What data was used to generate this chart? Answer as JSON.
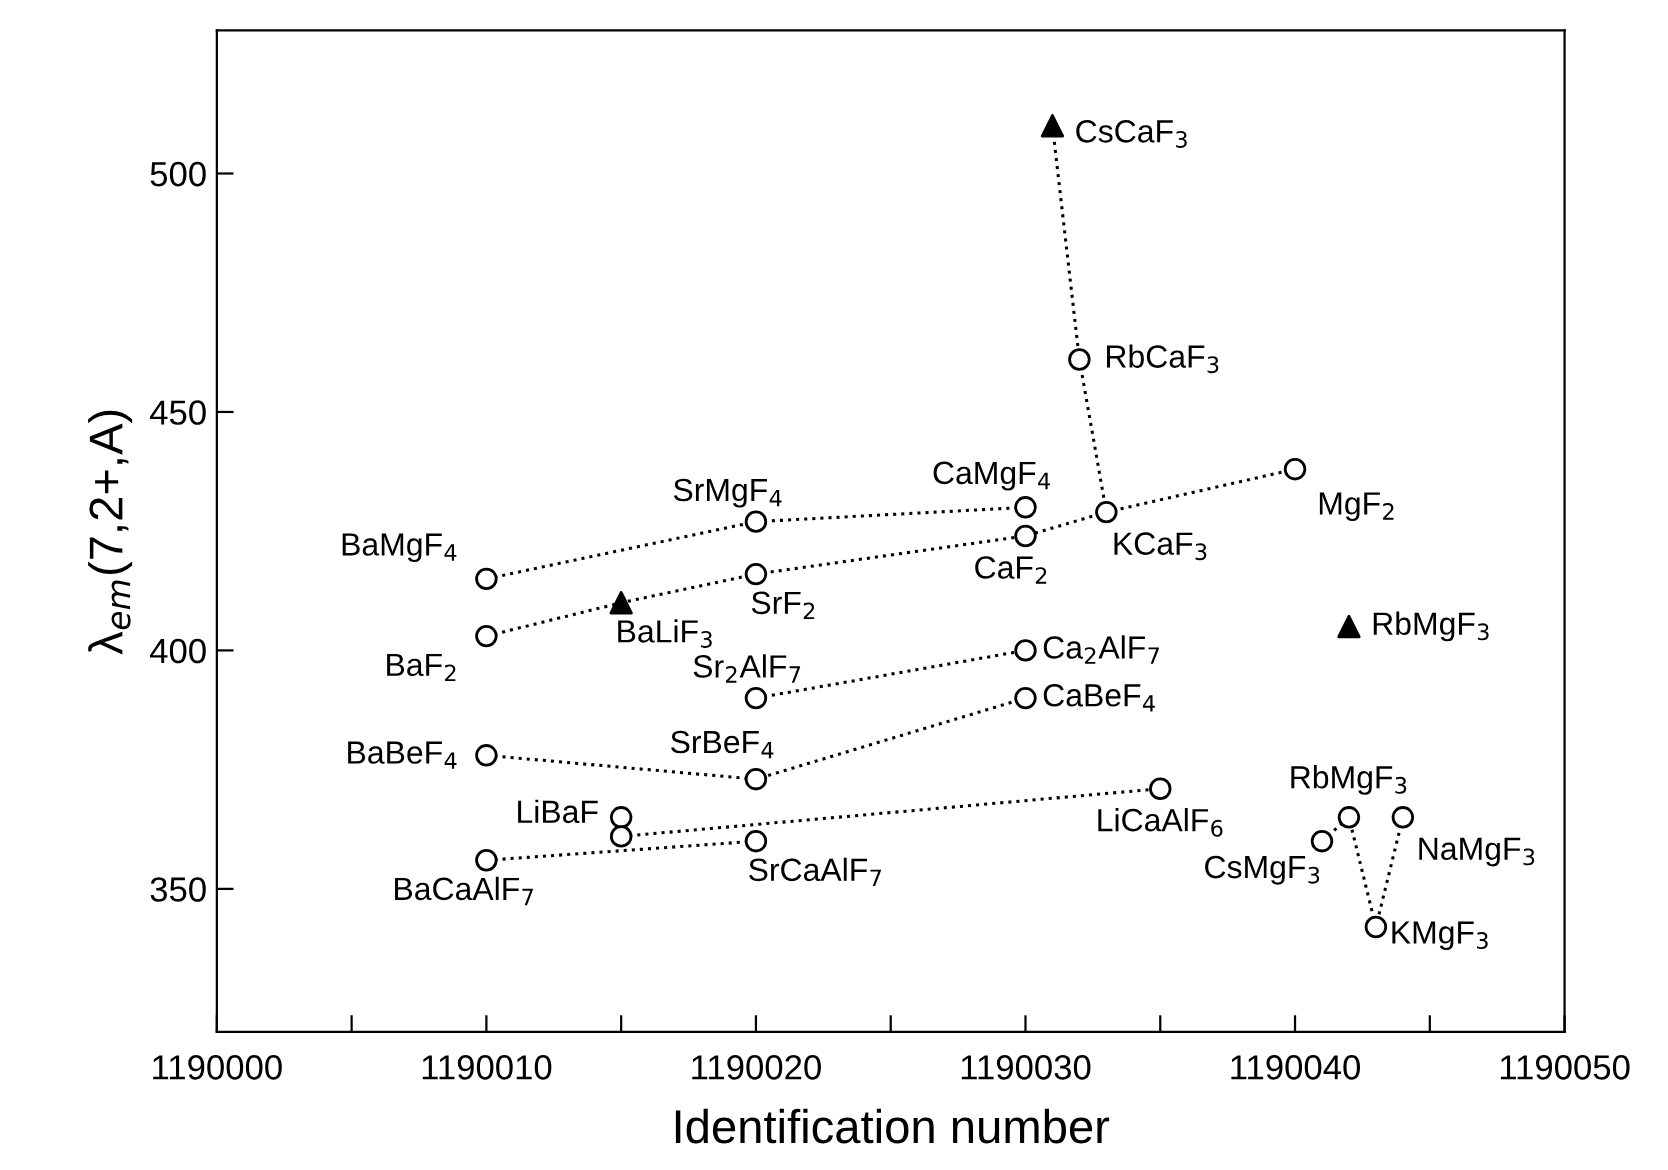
{
  "chart_data": {
    "type": "line",
    "xlabel": "Identification number",
    "ylabel": "λ$_{em}$(7,2+,A)",
    "xlim": [
      1190000,
      1190050
    ],
    "ylim": [
      320,
      530
    ],
    "xticks": [
      1190000,
      {
        "value": 1190005,
        "label": null
      },
      1190010,
      {
        "value": 1190015,
        "label": null
      },
      1190020,
      {
        "value": 1190025,
        "label": null
      },
      1190030,
      {
        "value": 1190035,
        "label": null
      },
      1190040,
      {
        "value": 1190045,
        "label": null
      },
      1190050
    ],
    "yticks": [
      350,
      400,
      450,
      500
    ],
    "grid": false,
    "legend": false,
    "line_style": "dotted",
    "series": [
      {
        "marker": "none",
        "color": "#000000",
        "x": [
          1190010,
          1190020,
          1190030
        ],
        "values": [
          415,
          427,
          430
        ]
      },
      {
        "marker": "none",
        "color": "#000000",
        "x": [
          1190010,
          1190015,
          1190020,
          1190030,
          1190033,
          1190040
        ],
        "values": [
          403,
          410,
          416,
          424,
          429,
          438
        ]
      },
      {
        "marker": "none",
        "color": "#000000",
        "x": [
          1190031,
          1190032,
          1190033
        ],
        "values": [
          510,
          461,
          429
        ]
      },
      {
        "marker": "none",
        "color": "#000000",
        "x": [
          1190020,
          1190030
        ],
        "values": [
          390,
          400
        ]
      },
      {
        "marker": "none",
        "color": "#000000",
        "x": [
          1190010,
          1190020,
          1190030
        ],
        "values": [
          378,
          373,
          390
        ]
      },
      {
        "marker": "none",
        "color": "#000000",
        "x": [
          1190015,
          1190035
        ],
        "values": [
          361,
          371
        ]
      },
      {
        "marker": "none",
        "color": "#000000",
        "x": [
          1190010,
          1190020
        ],
        "values": [
          356,
          360
        ]
      },
      {
        "marker": "none",
        "color": "#000000",
        "x": [
          1190041,
          1190042,
          1190043,
          1190044
        ],
        "values": [
          360,
          365,
          342,
          365
        ]
      },
      {
        "type": "scatter",
        "marker": "circle",
        "color": "#000000",
        "x": [
          1190010,
          1190020,
          1190030,
          1190010,
          1190020,
          1190030,
          1190033,
          1190040,
          1190032,
          1190020,
          1190030,
          1190010,
          1190020,
          1190030,
          1190015,
          1190015,
          1190035,
          1190010,
          1190020,
          1190041,
          1190042,
          1190043,
          1190044
        ],
        "values": [
          415,
          427,
          430,
          403,
          416,
          424,
          429,
          438,
          461,
          390,
          400,
          378,
          373,
          390,
          365,
          361,
          371,
          356,
          360,
          360,
          365,
          342,
          365
        ]
      },
      {
        "type": "scatter",
        "marker": "triangle",
        "color": "#000000",
        "x": [
          1190015,
          1190031,
          1190042
        ],
        "values": [
          410,
          510,
          405
        ]
      }
    ],
    "annotations": [
      {
        "text": "BaMgF$_{4}$",
        "x": 1190010,
        "y": 415
      },
      {
        "text": "SrMgF$_{4}$",
        "x": 1190020,
        "y": 427
      },
      {
        "text": "CaMgF$_{4}$",
        "x": 1190030,
        "y": 430
      },
      {
        "text": "BaF$_{2}$",
        "x": 1190010,
        "y": 403
      },
      {
        "text": "BaLiF$_{3}$",
        "x": 1190015,
        "y": 410
      },
      {
        "text": "SrF$_{2}$",
        "x": 1190020,
        "y": 416
      },
      {
        "text": "CaF$_{2}$",
        "x": 1190030,
        "y": 424
      },
      {
        "text": "KCaF$_{3}$",
        "x": 1190033,
        "y": 429
      },
      {
        "text": "MgF$_{2}$",
        "x": 1190040,
        "y": 438
      },
      {
        "text": "CsCaF$_{3}$",
        "x": 1190031,
        "y": 510
      },
      {
        "text": "RbCaF$_{3}$",
        "x": 1190032,
        "y": 461
      },
      {
        "text": "Sr$_{2}$AlF$_{7}$",
        "x": 1190020,
        "y": 390
      },
      {
        "text": "Ca$_{2}$AlF$_{7}$",
        "x": 1190030,
        "y": 400
      },
      {
        "text": "CaBeF$_{4}$",
        "x": 1190030,
        "y": 390
      },
      {
        "text": "BaBeF$_{4}$",
        "x": 1190010,
        "y": 378
      },
      {
        "text": "SrBeF$_{4}$",
        "x": 1190020,
        "y": 373
      },
      {
        "text": "LiBaF",
        "x": 1190015,
        "y": 365
      },
      {
        "text": "LiCaAlF$_{6}$",
        "x": 1190035,
        "y": 371
      },
      {
        "text": "BaCaAlF$_{7}$",
        "x": 1190010,
        "y": 356
      },
      {
        "text": "SrCaAlF$_{7}$",
        "x": 1190020,
        "y": 360
      },
      {
        "text": "RbMgF$_{3}$",
        "x": 1190042,
        "y": 405
      },
      {
        "text": "RbMgF$_{3}$",
        "x": 1190042,
        "y": 365
      },
      {
        "text": "CsMgF$_{3}$",
        "x": 1190041,
        "y": 360
      },
      {
        "text": "KMgF$_{3}$",
        "x": 1190043,
        "y": 342
      },
      {
        "text": "NaMgF$_{3}$",
        "x": 1190044,
        "y": 365
      }
    ]
  }
}
